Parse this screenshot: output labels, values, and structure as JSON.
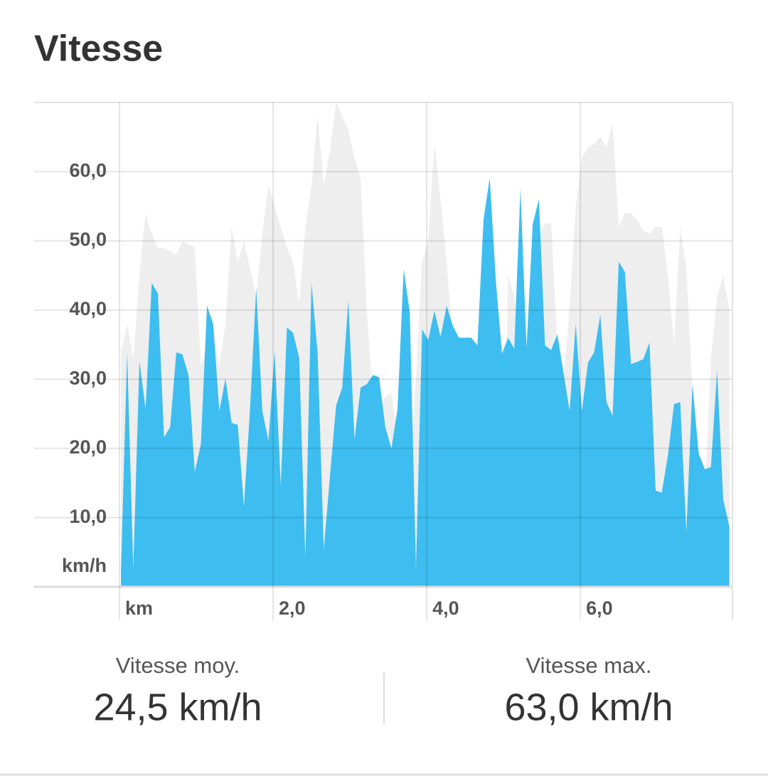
{
  "title": "Vitesse",
  "chart_data": {
    "type": "area",
    "y_label": "km/h",
    "x": [
      0.02,
      0.1,
      0.18,
      0.26,
      0.34,
      0.42,
      0.5,
      0.58,
      0.66,
      0.74,
      0.82,
      0.9,
      0.98,
      1.06,
      1.14,
      1.22,
      1.3,
      1.38,
      1.46,
      1.54,
      1.62,
      1.7,
      1.78,
      1.86,
      1.94,
      2.02,
      2.1,
      2.18,
      2.26,
      2.34,
      2.42,
      2.5,
      2.58,
      2.66,
      2.74,
      2.82,
      2.9,
      2.98,
      3.06,
      3.14,
      3.22,
      3.3,
      3.38,
      3.46,
      3.54,
      3.62,
      3.7,
      3.78,
      3.86,
      3.94,
      4.02,
      4.1,
      4.18,
      4.26,
      4.34,
      4.42,
      4.5,
      4.58,
      4.66,
      4.74,
      4.82,
      4.9,
      4.98,
      5.06,
      5.14,
      5.22,
      5.3,
      5.38,
      5.46,
      5.54,
      5.62,
      5.7,
      5.78,
      5.86,
      5.94,
      6.02,
      6.1,
      6.18,
      6.26,
      6.34,
      6.42,
      6.5,
      6.58,
      6.66,
      6.74,
      6.82,
      6.9,
      6.98,
      7.06,
      7.14,
      7.22,
      7.3,
      7.38,
      7.46,
      7.54,
      7.62,
      7.7,
      7.78,
      7.86,
      7.94
    ],
    "series": [
      {
        "color": "#eeeeee",
        "values": [
          34,
          38,
          33,
          45,
          54,
          51,
          49,
          49,
          48.5,
          48,
          50,
          49.5,
          49,
          32,
          35,
          37,
          32,
          38,
          52,
          47,
          50,
          46,
          42,
          51,
          58,
          55,
          52,
          49,
          47,
          41,
          52,
          58,
          68,
          58,
          63,
          70,
          68,
          66,
          62,
          59,
          40,
          27,
          26,
          27.5,
          28,
          22,
          20,
          17,
          30,
          47,
          50,
          64,
          56,
          47,
          35,
          24,
          17,
          14,
          10,
          22,
          33,
          20,
          0.5,
          45,
          42,
          36,
          36,
          47,
          51,
          52.5,
          52.5,
          35,
          30,
          40,
          55,
          62,
          63.5,
          64,
          65,
          63.5,
          67,
          52,
          54,
          54,
          53,
          51.5,
          51,
          52,
          52,
          45,
          35,
          52,
          46,
          28,
          15,
          12.5,
          33,
          42,
          45,
          40
        ]
      },
      {
        "color": "#3dbdf0",
        "values": [
          2.6,
          33.9,
          2.6,
          32.6,
          25.7,
          43.9,
          42.4,
          21.6,
          23.1,
          33.9,
          33.6,
          30.5,
          16.6,
          20.6,
          40.6,
          38.0,
          25.4,
          30.1,
          23.7,
          23.4,
          11.6,
          25.7,
          43.2,
          25.4,
          21.1,
          34.1,
          14.6,
          37.5,
          36.7,
          33.1,
          4.1,
          43.9,
          33.7,
          5.4,
          15.9,
          26.2,
          28.8,
          41.4,
          21.3,
          28.8,
          29.3,
          30.6,
          30.3,
          23.1,
          20.0,
          25.7,
          45.9,
          39.6,
          2.6,
          37.2,
          35.7,
          39.9,
          36.1,
          40.6,
          37.7,
          36.0,
          36.0,
          36.0,
          34.9,
          53.1,
          59.1,
          44.2,
          33.7,
          36.0,
          34.4,
          57.6,
          34.4,
          52.4,
          56.0,
          34.9,
          34.2,
          36.5,
          31.0,
          25.4,
          38.0,
          25.4,
          32.4,
          33.9,
          39.3,
          26.7,
          24.7,
          47.0,
          45.5,
          32.2,
          32.5,
          32.9,
          35.3,
          13.9,
          13.6,
          19.0,
          26.4,
          26.7,
          7.9,
          29.3,
          19.3,
          17.0,
          17.3,
          31.3,
          12.6,
          8.7
        ]
      }
    ],
    "xlim": [
      0,
      7.98
    ],
    "xticks": [
      {
        "value": 0,
        "label": "km"
      },
      {
        "value": 2,
        "label": "2,0"
      },
      {
        "value": 4,
        "label": "4,0"
      },
      {
        "value": 6,
        "label": "6,0"
      }
    ],
    "ylim": [
      0,
      70
    ],
    "yticks": [
      {
        "value": 10,
        "label": "10,0"
      },
      {
        "value": 20,
        "label": "20,0"
      },
      {
        "value": 30,
        "label": "30,0"
      },
      {
        "value": 40,
        "label": "40,0"
      },
      {
        "value": 50,
        "label": "50,0"
      },
      {
        "value": 60,
        "label": "60,0"
      }
    ],
    "grid": true
  },
  "stats": [
    {
      "label": "Vitesse moy.",
      "value": "24,5 km/h"
    },
    {
      "label": "Vitesse max.",
      "value": "63,0 km/h"
    }
  ]
}
